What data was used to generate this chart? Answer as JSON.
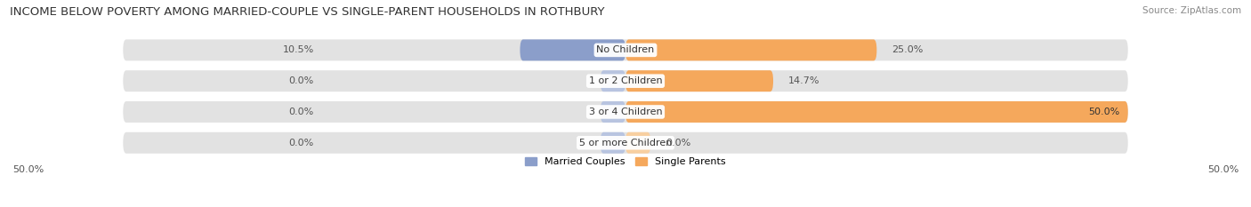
{
  "title": "INCOME BELOW POVERTY AMONG MARRIED-COUPLE VS SINGLE-PARENT HOUSEHOLDS IN ROTHBURY",
  "source": "Source: ZipAtlas.com",
  "categories": [
    "No Children",
    "1 or 2 Children",
    "3 or 4 Children",
    "5 or more Children"
  ],
  "married_values": [
    10.5,
    0.0,
    0.0,
    0.0
  ],
  "single_values": [
    25.0,
    14.7,
    50.0,
    0.0
  ],
  "married_color": "#8B9ECA",
  "single_color": "#F5A85C",
  "married_color_zero": "#B8C4E0",
  "single_color_zero": "#F8CFA0",
  "bar_bg_color": "#E2E2E2",
  "axis_limit": 50.0,
  "legend_married": "Married Couples",
  "legend_single": "Single Parents",
  "title_fontsize": 9.5,
  "source_fontsize": 7.5,
  "label_fontsize": 8,
  "category_fontsize": 8
}
